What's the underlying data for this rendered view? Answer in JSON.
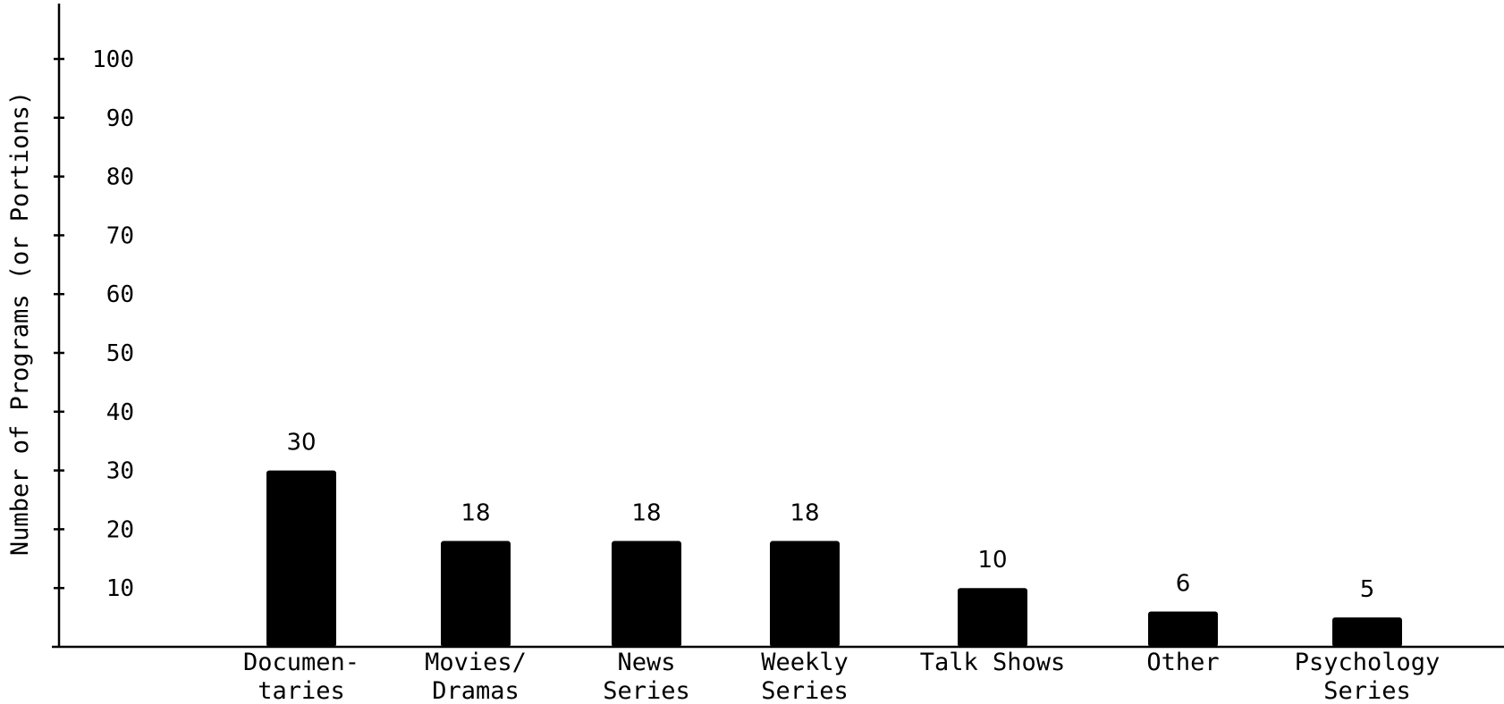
{
  "chart_data": {
    "type": "bar",
    "categories": [
      [
        "Documen-",
        "taries"
      ],
      [
        "Movies/",
        "Dramas"
      ],
      [
        "News",
        "Series"
      ],
      [
        "Weekly",
        "Series"
      ],
      [
        "Talk Shows"
      ],
      [
        "Other"
      ],
      [
        "Psychology",
        "Series"
      ]
    ],
    "values": [
      30,
      18,
      18,
      18,
      10,
      6,
      5
    ],
    "data_labels": [
      "30",
      "18",
      "18",
      "18",
      "10",
      "6",
      "5"
    ],
    "title": "",
    "xlabel": "",
    "ylabel": "Number of Programs (or Portions)",
    "ylim": [
      0,
      100
    ],
    "yticks": [
      10,
      20,
      30,
      40,
      50,
      60,
      70,
      80,
      90,
      100
    ],
    "grid": false,
    "bar_color": "#000000",
    "axis_color": "#000000"
  }
}
